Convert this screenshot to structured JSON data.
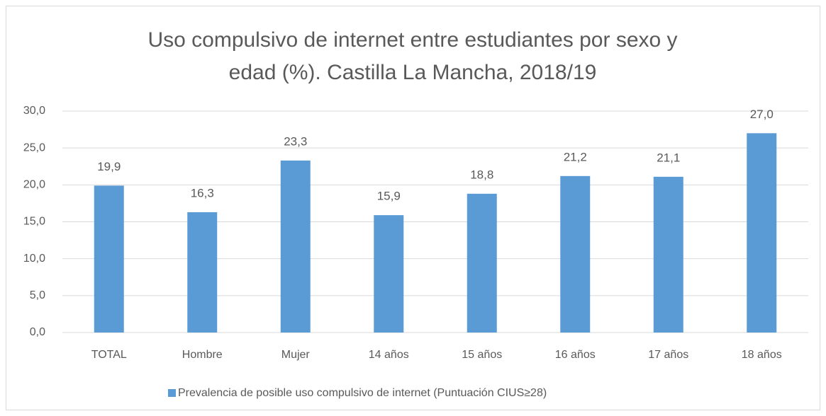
{
  "chart_data": {
    "type": "bar",
    "title": [
      "Uso compulsivo de internet entre estudiantes por sexo y",
      "edad (%). Castilla La Mancha, 2018/19"
    ],
    "categories": [
      "TOTAL",
      "Hombre",
      "Mujer",
      "14 años",
      "15 años",
      "16 años",
      "17 años",
      "18 años"
    ],
    "series": [
      {
        "name": "Prevalencia de posible uso compulsivo de internet (Puntuación CIUS≥28)",
        "color": "#5b9bd5",
        "values": [
          19.9,
          16.3,
          23.3,
          15.9,
          18.8,
          21.2,
          21.1,
          27.0
        ],
        "value_labels": [
          "19,9",
          "16,3",
          "23,3",
          "15,9",
          "18,8",
          "21,2",
          "21,1",
          "27,0"
        ]
      }
    ],
    "ylim": [
      0,
      30
    ],
    "yticks": [
      {
        "value": 0,
        "label": "0,0"
      },
      {
        "value": 5,
        "label": "5,0"
      },
      {
        "value": 10,
        "label": "10,0"
      },
      {
        "value": 15,
        "label": "15,0"
      },
      {
        "value": 20,
        "label": "20,0"
      },
      {
        "value": 25,
        "label": "25,0"
      },
      {
        "value": 30,
        "label": "30,0"
      }
    ],
    "grid": true,
    "legend": "bottom"
  }
}
